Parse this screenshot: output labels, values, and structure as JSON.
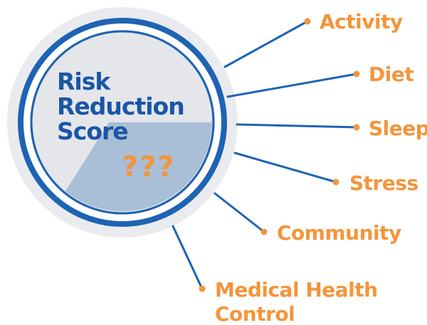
{
  "colors": {
    "ring_blue": "#1e63b4",
    "outer_halo": "#e9ebee",
    "disc_fill": "#e4e6ea",
    "fill_segment": "#a9bed7",
    "title_blue": "#1a56a5",
    "accent_orange": "#f3953b",
    "connector_blue": "#1e63b4"
  },
  "gauge": {
    "title_lines": [
      "Risk",
      "Reduction",
      "Score"
    ],
    "score_placeholder": "???"
  },
  "factors": [
    {
      "name": "activity",
      "label": "Activity"
    },
    {
      "name": "diet",
      "label": "Diet"
    },
    {
      "name": "sleep",
      "label": "Sleep"
    },
    {
      "name": "stress",
      "label": "Stress"
    },
    {
      "name": "community",
      "label": "Community"
    },
    {
      "name": "medical-health-control",
      "label_lines": [
        "Medical Health",
        "Control"
      ]
    }
  ]
}
